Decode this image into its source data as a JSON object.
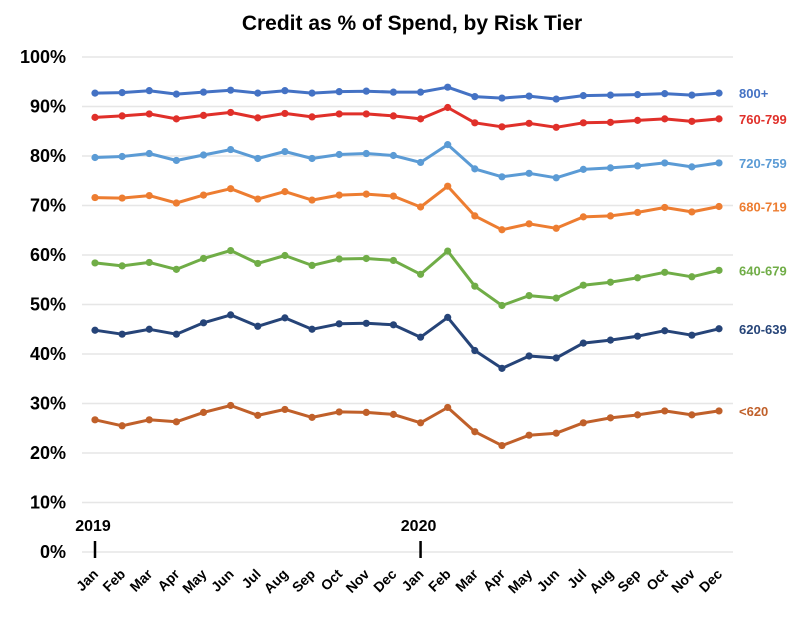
{
  "chart_data": {
    "type": "line",
    "title": "Credit as % of Spend, by Risk Tier",
    "xlabel": "",
    "ylabel": "",
    "ylim": [
      0,
      100
    ],
    "y_ticks": [
      "0%",
      "10%",
      "20%",
      "30%",
      "40%",
      "50%",
      "60%",
      "70%",
      "80%",
      "90%",
      "100%"
    ],
    "grid": true,
    "legend": "inline-right",
    "x": [
      "Jan",
      "Feb",
      "Mar",
      "Apr",
      "May",
      "Jun",
      "Jul",
      "Aug",
      "Sep",
      "Oct",
      "Nov",
      "Dec",
      "Jan",
      "Feb",
      "Mar",
      "Apr",
      "May",
      "Jun",
      "Jul",
      "Aug",
      "Sep",
      "Oct",
      "Nov",
      "Dec"
    ],
    "year_markers": [
      {
        "label": "2019",
        "index": 0
      },
      {
        "label": "2020",
        "index": 12
      }
    ],
    "series": [
      {
        "name": "800+",
        "color": "#4472C4",
        "values": [
          92.7,
          92.8,
          93.2,
          92.5,
          92.9,
          93.3,
          92.7,
          93.2,
          92.7,
          93.0,
          93.1,
          92.9,
          92.9,
          93.9,
          92.0,
          91.7,
          92.1,
          91.5,
          92.2,
          92.3,
          92.4,
          92.6,
          92.3,
          92.7
        ]
      },
      {
        "name": "760-799",
        "color": "#E0302A",
        "values": [
          87.8,
          88.1,
          88.5,
          87.5,
          88.2,
          88.8,
          87.7,
          88.6,
          87.9,
          88.5,
          88.5,
          88.1,
          87.5,
          89.8,
          86.7,
          85.9,
          86.6,
          85.8,
          86.7,
          86.8,
          87.2,
          87.5,
          87.0,
          87.5
        ]
      },
      {
        "name": "720-759",
        "color": "#5B9BD5",
        "values": [
          79.7,
          79.9,
          80.5,
          79.1,
          80.2,
          81.3,
          79.5,
          80.9,
          79.5,
          80.3,
          80.5,
          80.1,
          78.7,
          82.3,
          77.4,
          75.8,
          76.5,
          75.6,
          77.3,
          77.6,
          78.0,
          78.6,
          77.8,
          78.6
        ]
      },
      {
        "name": "680-719",
        "color": "#ED7D31",
        "values": [
          71.6,
          71.5,
          72.0,
          70.5,
          72.1,
          73.4,
          71.3,
          72.8,
          71.1,
          72.1,
          72.3,
          71.9,
          69.7,
          73.9,
          67.9,
          65.1,
          66.3,
          65.4,
          67.7,
          67.9,
          68.6,
          69.6,
          68.7,
          69.8
        ]
      },
      {
        "name": "640-679",
        "color": "#70AD47",
        "values": [
          58.4,
          57.8,
          58.5,
          57.1,
          59.3,
          60.9,
          58.3,
          59.9,
          57.9,
          59.2,
          59.3,
          58.9,
          56.1,
          60.8,
          53.7,
          49.8,
          51.8,
          51.3,
          53.9,
          54.5,
          55.4,
          56.5,
          55.6,
          56.9
        ]
      },
      {
        "name": "620-639",
        "color": "#264478",
        "values": [
          44.8,
          44.0,
          45.0,
          44.0,
          46.3,
          47.9,
          45.6,
          47.3,
          45.0,
          46.1,
          46.2,
          45.9,
          43.4,
          47.4,
          40.7,
          37.1,
          39.6,
          39.2,
          42.2,
          42.8,
          43.6,
          44.7,
          43.8,
          45.1
        ]
      },
      {
        "name": "<620",
        "color": "#C0602A",
        "values": [
          26.7,
          25.5,
          26.7,
          26.3,
          28.2,
          29.6,
          27.6,
          28.8,
          27.2,
          28.3,
          28.2,
          27.8,
          26.1,
          29.2,
          24.3,
          21.5,
          23.6,
          24.0,
          26.1,
          27.1,
          27.7,
          28.5,
          27.7,
          28.5
        ]
      }
    ]
  },
  "colors": {
    "grid": "#E6E6E6",
    "text": "#000000"
  }
}
